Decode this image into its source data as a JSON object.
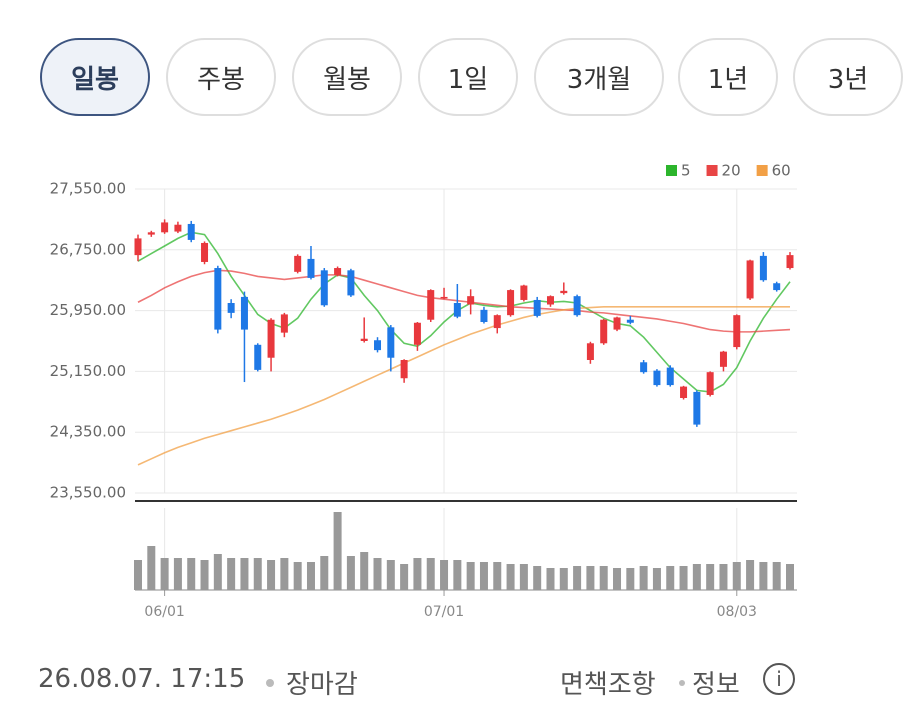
{
  "tabs": [
    "일봉",
    "주봉",
    "월봉",
    "1일",
    "3개월",
    "1년",
    "3년"
  ],
  "chart_data": {
    "type": "candlestick",
    "categories": [
      null,
      null,
      "06/01",
      null,
      null,
      null,
      null,
      null,
      null,
      null,
      null,
      null,
      null,
      null,
      null,
      null,
      null,
      null,
      null,
      null,
      null,
      null,
      null,
      "07/01",
      null,
      null,
      null,
      null,
      null,
      null,
      null,
      null,
      null,
      null,
      null,
      null,
      null,
      null,
      null,
      null,
      null,
      null,
      null,
      null,
      null,
      "08/03",
      null,
      null,
      null,
      null
    ],
    "open": [
      26680,
      26950,
      26980,
      26990,
      27090,
      26590,
      26510,
      26050,
      26130,
      25500,
      25330,
      25660,
      26460,
      26630,
      26480,
      26420,
      26480,
      25550,
      25560,
      25730,
      25060,
      25500,
      25830,
      26120,
      26050,
      26030,
      25960,
      25720,
      25890,
      26090,
      26090,
      26030,
      26180,
      26140,
      25300,
      25520,
      25700,
      25830,
      25270,
      25160,
      25200,
      24800,
      24880,
      24840,
      25210,
      25470,
      26110,
      26670,
      26310,
      26510
    ],
    "high": [
      26950,
      27000,
      27150,
      27120,
      27130,
      26860,
      26540,
      26100,
      26200,
      25520,
      25850,
      25920,
      26690,
      26800,
      26510,
      26530,
      26500,
      25860,
      25600,
      25760,
      25310,
      25800,
      26230,
      26250,
      26300,
      26230,
      26000,
      25900,
      26230,
      26290,
      26130,
      26150,
      26320,
      26160,
      25540,
      25840,
      25870,
      25880,
      25300,
      25180,
      25230,
      24960,
      24900,
      25150,
      25420,
      25900,
      26620,
      26720,
      26330,
      26720
    ],
    "low": [
      26600,
      26920,
      26960,
      26970,
      26850,
      26560,
      25650,
      25850,
      25010,
      25150,
      25150,
      25600,
      26440,
      26360,
      26000,
      26400,
      26130,
      25530,
      25400,
      25150,
      25000,
      25420,
      25800,
      26100,
      25850,
      25900,
      25780,
      25650,
      25870,
      26070,
      25860,
      26000,
      26160,
      25870,
      25250,
      25500,
      25680,
      25770,
      25120,
      24950,
      24950,
      24780,
      24420,
      24820,
      25150,
      25440,
      26090,
      26330,
      26200,
      26490
    ],
    "close": [
      26900,
      26980,
      27110,
      27080,
      26880,
      26840,
      25700,
      25920,
      25700,
      25170,
      25830,
      25900,
      26670,
      26380,
      26020,
      26510,
      26150,
      25580,
      25430,
      25330,
      25300,
      25790,
      26220,
      26130,
      25870,
      26140,
      25800,
      25890,
      26220,
      26280,
      25880,
      26140,
      26210,
      25890,
      25520,
      25830,
      25860,
      25790,
      25140,
      24970,
      24970,
      24950,
      24450,
      25140,
      25410,
      25890,
      26610,
      26350,
      26220,
      26680
    ],
    "up_color": "#e8383d",
    "down_color": "#1e78e6",
    "series": [
      {
        "name": "5",
        "color": "#2cb52c",
        "values": [
          26600,
          26700,
          26800,
          26900,
          26980,
          26950,
          26700,
          26400,
          26150,
          25900,
          25780,
          25720,
          25850,
          26100,
          26300,
          26420,
          26380,
          26150,
          25950,
          25700,
          25520,
          25480,
          25620,
          25800,
          25950,
          26050,
          26020,
          26000,
          26010,
          26050,
          26080,
          26060,
          26070,
          26050,
          25950,
          25850,
          25780,
          25750,
          25600,
          25400,
          25200,
          25050,
          24900,
          24880,
          24980,
          25200,
          25550,
          25850,
          26100,
          26330
        ]
      },
      {
        "name": "20",
        "color": "#e84545",
        "values": [
          26060,
          26150,
          26250,
          26330,
          26400,
          26450,
          26480,
          26470,
          26440,
          26400,
          26380,
          26360,
          26380,
          26400,
          26420,
          26420,
          26400,
          26350,
          26300,
          26250,
          26200,
          26150,
          26120,
          26100,
          26080,
          26060,
          26040,
          26020,
          26000,
          25990,
          25980,
          25970,
          25960,
          25950,
          25930,
          25920,
          25900,
          25880,
          25860,
          25840,
          25810,
          25780,
          25740,
          25700,
          25680,
          25670,
          25670,
          25680,
          25690,
          25700
        ]
      },
      {
        "name": "60",
        "color": "#f2a046",
        "values": [
          23920,
          24000,
          24080,
          24150,
          24210,
          24270,
          24320,
          24370,
          24420,
          24470,
          24520,
          24580,
          24640,
          24710,
          24780,
          24860,
          24940,
          25020,
          25100,
          25180,
          25260,
          25340,
          25420,
          25500,
          25570,
          25640,
          25700,
          25760,
          25810,
          25860,
          25900,
          25930,
          25960,
          25980,
          25990,
          26000,
          26000,
          26000,
          26000,
          26000,
          26000,
          26000,
          26000,
          26000,
          26000,
          26000,
          26000,
          26000,
          26000,
          26000
        ]
      }
    ],
    "volume": [
      30,
      44,
      32,
      32,
      32,
      30,
      36,
      32,
      32,
      32,
      30,
      32,
      28,
      28,
      34,
      78,
      34,
      38,
      32,
      30,
      26,
      32,
      32,
      30,
      30,
      28,
      28,
      28,
      26,
      26,
      24,
      22,
      22,
      24,
      24,
      24,
      22,
      22,
      24,
      22,
      24,
      24,
      26,
      26,
      26,
      28,
      30,
      28,
      28,
      26
    ],
    "volume_color": "#999999",
    "ylim": [
      23550,
      27550
    ],
    "yticks": [
      {
        "value": 27550,
        "label": "27,550.00"
      },
      {
        "value": 26750,
        "label": "26,750.00"
      },
      {
        "value": 25950,
        "label": "25,950.00"
      },
      {
        "value": 25150,
        "label": "25,150.00"
      },
      {
        "value": 24350,
        "label": "24,350.00"
      },
      {
        "value": 23550,
        "label": "23,550.00"
      }
    ],
    "grid": true,
    "legend": "top-right"
  },
  "footer": {
    "timestamp": "26.08.07. 17:15",
    "status": "장마감",
    "disclaimer": "면책조항",
    "info": "정보",
    "info_icon": "i"
  }
}
